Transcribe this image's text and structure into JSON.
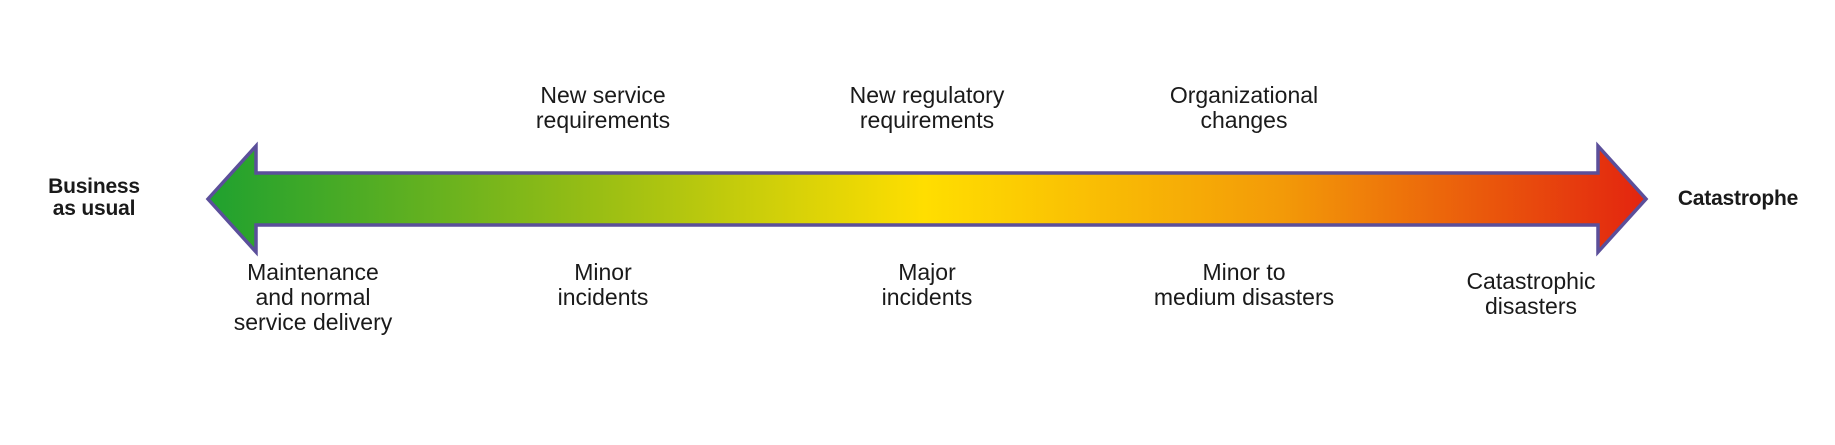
{
  "left_end": {
    "lines": [
      "Business",
      "as usual"
    ]
  },
  "right_end": {
    "lines": [
      "Catastrophe"
    ]
  },
  "top_labels": [
    {
      "lines": [
        "New service",
        "requirements"
      ]
    },
    {
      "lines": [
        "New regulatory",
        "requirements"
      ]
    },
    {
      "lines": [
        "Organizational",
        "changes"
      ]
    }
  ],
  "bottom_labels": [
    {
      "lines": [
        "Maintenance",
        "and normal",
        "service delivery"
      ]
    },
    {
      "lines": [
        "Minor",
        "incidents"
      ]
    },
    {
      "lines": [
        "Major",
        "incidents"
      ]
    },
    {
      "lines": [
        "Minor to",
        "medium disasters"
      ]
    },
    {
      "lines": [
        "Catastrophic",
        "disasters"
      ]
    }
  ],
  "colors": {
    "gradient": [
      "#1fa12f",
      "#8fbb16",
      "#ffde00",
      "#f39a08",
      "#e3260f"
    ],
    "outline": "#5b4f9a"
  }
}
